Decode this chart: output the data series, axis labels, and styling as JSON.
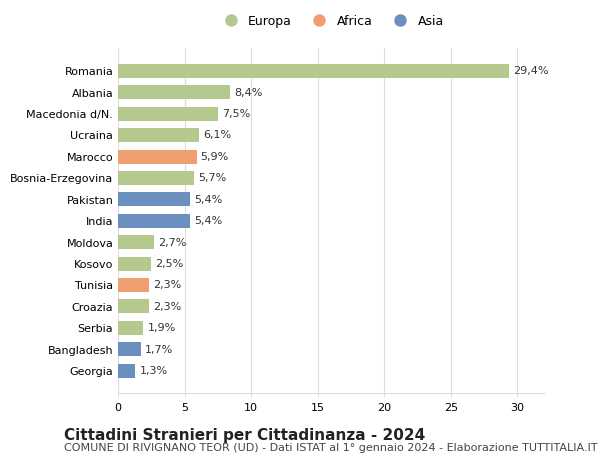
{
  "categories": [
    "Romania",
    "Albania",
    "Macedonia d/N.",
    "Ucraina",
    "Marocco",
    "Bosnia-Erzegovina",
    "Pakistan",
    "India",
    "Moldova",
    "Kosovo",
    "Tunisia",
    "Croazia",
    "Serbia",
    "Bangladesh",
    "Georgia"
  ],
  "values": [
    29.4,
    8.4,
    7.5,
    6.1,
    5.9,
    5.7,
    5.4,
    5.4,
    2.7,
    2.5,
    2.3,
    2.3,
    1.9,
    1.7,
    1.3
  ],
  "labels": [
    "29,4%",
    "8,4%",
    "7,5%",
    "6,1%",
    "5,9%",
    "5,7%",
    "5,4%",
    "5,4%",
    "2,7%",
    "2,5%",
    "2,3%",
    "2,3%",
    "1,9%",
    "1,7%",
    "1,3%"
  ],
  "continents": [
    "Europa",
    "Europa",
    "Europa",
    "Europa",
    "Africa",
    "Europa",
    "Asia",
    "Asia",
    "Europa",
    "Europa",
    "Africa",
    "Europa",
    "Europa",
    "Asia",
    "Asia"
  ],
  "colors": {
    "Europa": "#b5c98e",
    "Africa": "#f0a070",
    "Asia": "#6b8fbf"
  },
  "legend_items": [
    "Europa",
    "Africa",
    "Asia"
  ],
  "legend_colors": [
    "#b5c98e",
    "#f0a070",
    "#6b8fbf"
  ],
  "title": "Cittadini Stranieri per Cittadinanza - 2024",
  "subtitle": "COMUNE DI RIVIGNANO TEOR (UD) - Dati ISTAT al 1° gennaio 2024 - Elaborazione TUTTITALIA.IT",
  "xlim": [
    0,
    32
  ],
  "xticks": [
    0,
    5,
    10,
    15,
    20,
    25,
    30
  ],
  "background_color": "#ffffff",
  "grid_color": "#dddddd",
  "title_fontsize": 11,
  "subtitle_fontsize": 8,
  "label_fontsize": 8,
  "tick_fontsize": 8
}
